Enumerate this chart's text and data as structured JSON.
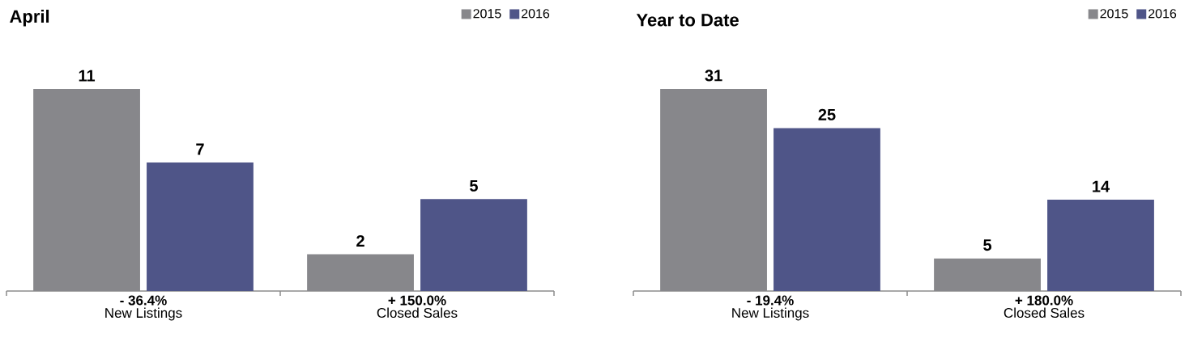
{
  "chart_data": [
    {
      "type": "bar",
      "title": "April",
      "categories": [
        "New Listings",
        "Closed Sales"
      ],
      "series": [
        {
          "name": "2015",
          "color": "#87878b",
          "values": [
            11,
            2
          ]
        },
        {
          "name": "2016",
          "color": "#4f5588",
          "values": [
            7,
            5
          ]
        }
      ],
      "annotations": [
        "- 36.4%",
        "+ 150.0%"
      ],
      "data_labels": true,
      "legend": "top right"
    },
    {
      "type": "bar",
      "title": "Year to Date",
      "categories": [
        "New Listings",
        "Closed Sales"
      ],
      "series": [
        {
          "name": "2015",
          "color": "#87878b",
          "values": [
            31,
            5
          ]
        },
        {
          "name": "2016",
          "color": "#4f5588",
          "values": [
            25,
            14
          ]
        }
      ],
      "annotations": [
        "- 19.4%",
        "+ 180.0%"
      ],
      "data_labels": true,
      "legend": "top right"
    }
  ]
}
